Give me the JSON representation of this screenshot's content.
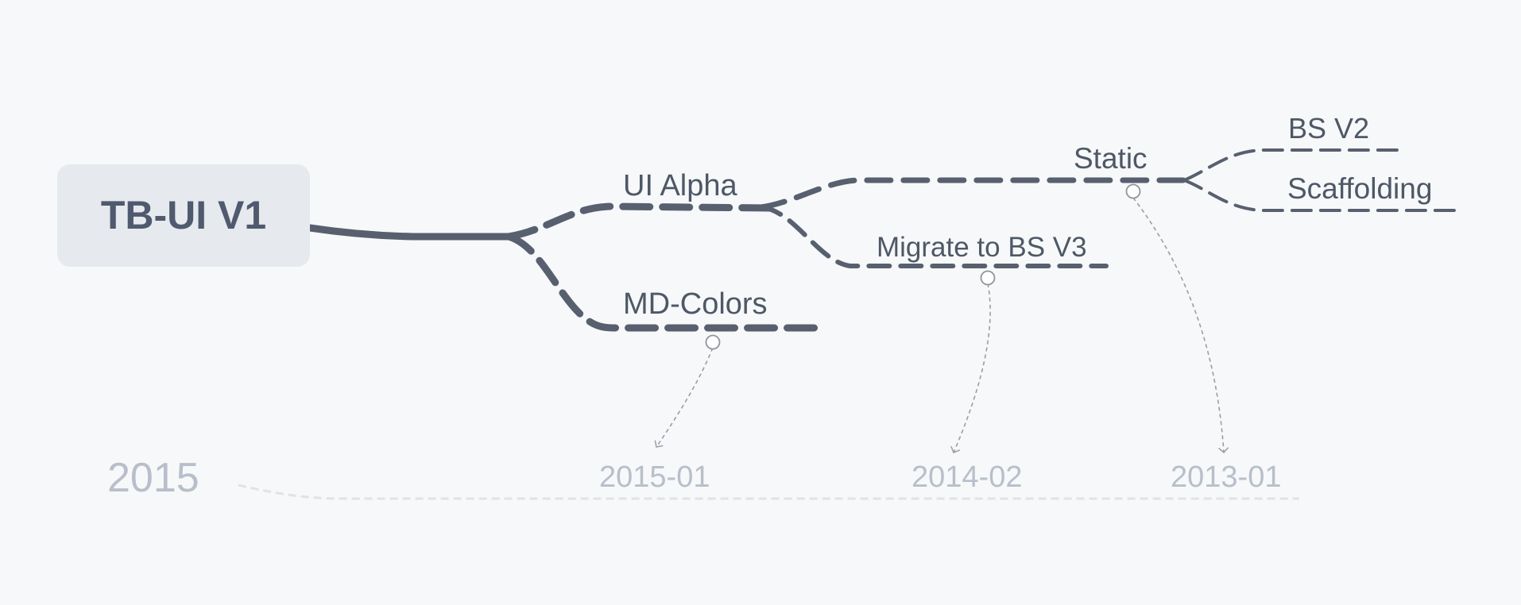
{
  "mindmap": {
    "root": {
      "label": "TB-UI V1"
    },
    "nodes": {
      "ui_alpha": {
        "label": "UI Alpha"
      },
      "md_colors": {
        "label": "MD-Colors"
      },
      "static": {
        "label": "Static"
      },
      "migrate": {
        "label": "Migrate to BS V3"
      },
      "bs_v2": {
        "label": "BS V2"
      },
      "scaffolding": {
        "label": "Scaffolding"
      }
    }
  },
  "timeline": {
    "year": "2015",
    "dates": {
      "md_colors": "2015-01",
      "migrate": "2014-02",
      "static": "2013-01"
    }
  },
  "colors": {
    "background": "#f6f8fa",
    "branch": "#58606f",
    "root_fill": "#e6e9ed",
    "root_text": "#505a6e",
    "node_text": "#4e5866",
    "date_text": "#b8bfca",
    "connector": "#9a9ea6",
    "timeline_axis": "#e0e2e6"
  }
}
